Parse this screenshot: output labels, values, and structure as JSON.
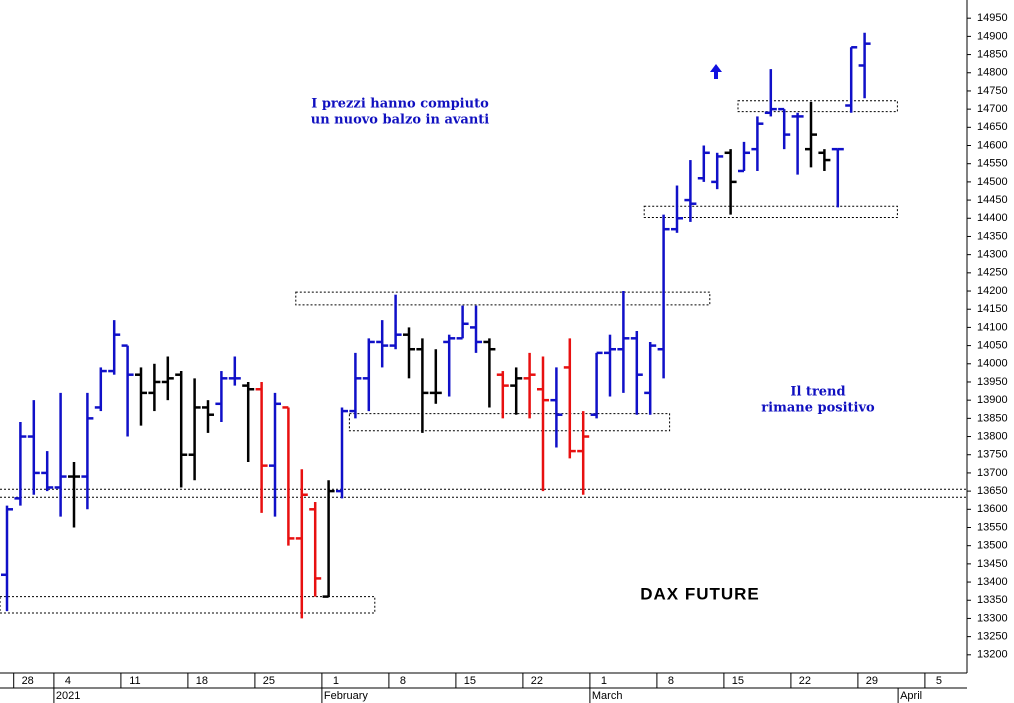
{
  "chart_data": {
    "type": "ohlc",
    "title": "DAX FUTURE",
    "annotations": [
      {
        "lines": [
          "I prezzi hanno compiuto",
          "un nuovo balzo in avanti"
        ]
      },
      {
        "lines": [
          "Il trend",
          "rimane positivo"
        ]
      }
    ],
    "categories": [
      null,
      "28",
      null,
      null,
      "4",
      null,
      null,
      null,
      null,
      "11",
      null,
      null,
      null,
      null,
      "18",
      null,
      null,
      null,
      null,
      "25",
      null,
      null,
      null,
      null,
      "1",
      null,
      null,
      null,
      null,
      "8",
      null,
      null,
      null,
      null,
      "15",
      null,
      null,
      null,
      null,
      "22",
      null,
      null,
      null,
      null,
      "1",
      null,
      null,
      null,
      null,
      "8",
      null,
      null,
      null,
      null,
      "15",
      null,
      null,
      null,
      null,
      "22",
      null,
      null,
      null,
      null,
      "29",
      null,
      null,
      null,
      null,
      "5",
      null,
      null
    ],
    "months": [
      {
        "label": "2021",
        "at": 4
      },
      {
        "label": "February",
        "at": 24
      },
      {
        "label": "March",
        "at": 44
      },
      {
        "label": "April",
        "at": 67
      }
    ],
    "open": [
      13420,
      13630,
      13800,
      13700,
      13660,
      13690,
      13690,
      13880,
      13980,
      14050,
      13970,
      13920,
      13950,
      13970,
      13750,
      13880,
      13890,
      13960,
      13940,
      13930,
      13720,
      13880,
      13520,
      13600,
      13360,
      13650,
      13870,
      13960,
      14060,
      14050,
      14080,
      14040,
      13920,
      14060,
      14070,
      14100,
      14060,
      13970,
      13940,
      13960,
      13930,
      13900,
      13990,
      13760,
      13860,
      14030,
      14040,
      14070,
      13920,
      14040,
      14370,
      14450,
      14510,
      14500,
      14580,
      14530,
      14590,
      14690,
      14700,
      14680,
      14590,
      14580,
      14590,
      14710,
      14820,
      null,
      null,
      null,
      null,
      null,
      null,
      null
    ],
    "high": [
      13610,
      13840,
      13900,
      13760,
      13920,
      13730,
      13920,
      13990,
      14120,
      14050,
      13990,
      14000,
      14020,
      13980,
      13960,
      13900,
      13980,
      14020,
      13950,
      13950,
      13920,
      13880,
      13710,
      13620,
      13680,
      13880,
      14030,
      14070,
      14120,
      14190,
      14100,
      14070,
      14040,
      14080,
      14160,
      14160,
      14070,
      13980,
      13990,
      14030,
      14020,
      13990,
      14070,
      13870,
      14030,
      14080,
      14200,
      14090,
      14060,
      14410,
      14490,
      14560,
      14600,
      14580,
      14590,
      14610,
      14680,
      14810,
      14700,
      14690,
      14720,
      14590,
      14590,
      14870,
      14910,
      null,
      null,
      null,
      null,
      null,
      null,
      null
    ],
    "low": [
      13320,
      13610,
      13640,
      13650,
      13580,
      13550,
      13600,
      13870,
      13970,
      13800,
      13830,
      13870,
      13900,
      13660,
      13680,
      13810,
      13840,
      13940,
      13730,
      13590,
      13580,
      13500,
      13300,
      13360,
      13360,
      13630,
      13850,
      13870,
      13990,
      14040,
      13960,
      13810,
      13890,
      13910,
      14070,
      14030,
      13880,
      13850,
      13860,
      13850,
      13650,
      13770,
      13740,
      13640,
      13850,
      13910,
      13920,
      13860,
      13860,
      13960,
      14360,
      14390,
      14500,
      14480,
      14410,
      14530,
      14530,
      14680,
      14590,
      14520,
      14540,
      14530,
      14430,
      14690,
      14730,
      null,
      null,
      null,
      null,
      null,
      null,
      null
    ],
    "close": [
      13600,
      13800,
      13700,
      13660,
      13690,
      13690,
      13850,
      13980,
      14080,
      13970,
      13920,
      13950,
      13960,
      13750,
      13880,
      13860,
      13960,
      13960,
      13930,
      13720,
      13890,
      13520,
      13640,
      13410,
      13650,
      13870,
      13960,
      14060,
      14050,
      14080,
      14040,
      13920,
      13920,
      14070,
      14110,
      14060,
      14040,
      13940,
      13960,
      13970,
      13900,
      13860,
      13760,
      13800,
      14030,
      14040,
      14070,
      13970,
      14050,
      14370,
      14400,
      14440,
      14580,
      14570,
      14500,
      14580,
      14660,
      14700,
      14630,
      14680,
      14630,
      14560,
      14590,
      14870,
      14880,
      null,
      null,
      null,
      null,
      null,
      null,
      null
    ],
    "colors": [
      "#1010c8",
      "#1010c8",
      "#1010c8",
      "#1010c8",
      "#1010c8",
      "#000000",
      "#1010c8",
      "#1010c8",
      "#1010c8",
      "#1010c8",
      "#000000",
      "#000000",
      "#000000",
      "#000000",
      "#000000",
      "#000000",
      "#1010c8",
      "#1010c8",
      "#000000",
      "#e81010",
      "#1010c8",
      "#e81010",
      "#e81010",
      "#e81010",
      "#000000",
      "#1010c8",
      "#1010c8",
      "#1010c8",
      "#1010c8",
      "#1010c8",
      "#000000",
      "#000000",
      "#000000",
      "#1010c8",
      "#1010c8",
      "#1010c8",
      "#000000",
      "#e81010",
      "#000000",
      "#e81010",
      "#e81010",
      "#1010c8",
      "#e81010",
      "#e81010",
      "#1010c8",
      "#1010c8",
      "#1010c8",
      "#1010c8",
      "#1010c8",
      "#1010c8",
      "#1010c8",
      "#1010c8",
      "#1010c8",
      "#1010c8",
      "#000000",
      "#1010c8",
      "#1010c8",
      "#1010c8",
      "#1010c8",
      "#1010c8",
      "#000000",
      "#000000",
      "#1010c8",
      "#1010c8",
      "#1010c8",
      null,
      null,
      null,
      null,
      null,
      null,
      null
    ],
    "zones": [
      {
        "from": -0.5,
        "to": 27,
        "low": 13315,
        "high": 13360
      },
      {
        "from": 26,
        "to": 49,
        "low": 13816,
        "high": 13863
      },
      {
        "from": 22,
        "to": 52,
        "low": 14162,
        "high": 14197
      },
      {
        "from": 48,
        "to": 66,
        "low": 14402,
        "high": 14433
      },
      {
        "from": 55,
        "to": 66,
        "low": 14693,
        "high": 14723
      }
    ],
    "levels": [
      13633,
      13655
    ],
    "ylim": [
      13150,
      15000
    ],
    "yticks": [
      13200,
      13250,
      13300,
      13350,
      13400,
      13450,
      13500,
      13550,
      13600,
      13650,
      13700,
      13750,
      13800,
      13850,
      13900,
      13950,
      14000,
      14050,
      14100,
      14150,
      14200,
      14250,
      14300,
      14350,
      14400,
      14450,
      14500,
      14550,
      14600,
      14650,
      14700,
      14750,
      14800,
      14850,
      14900,
      14950
    ]
  }
}
